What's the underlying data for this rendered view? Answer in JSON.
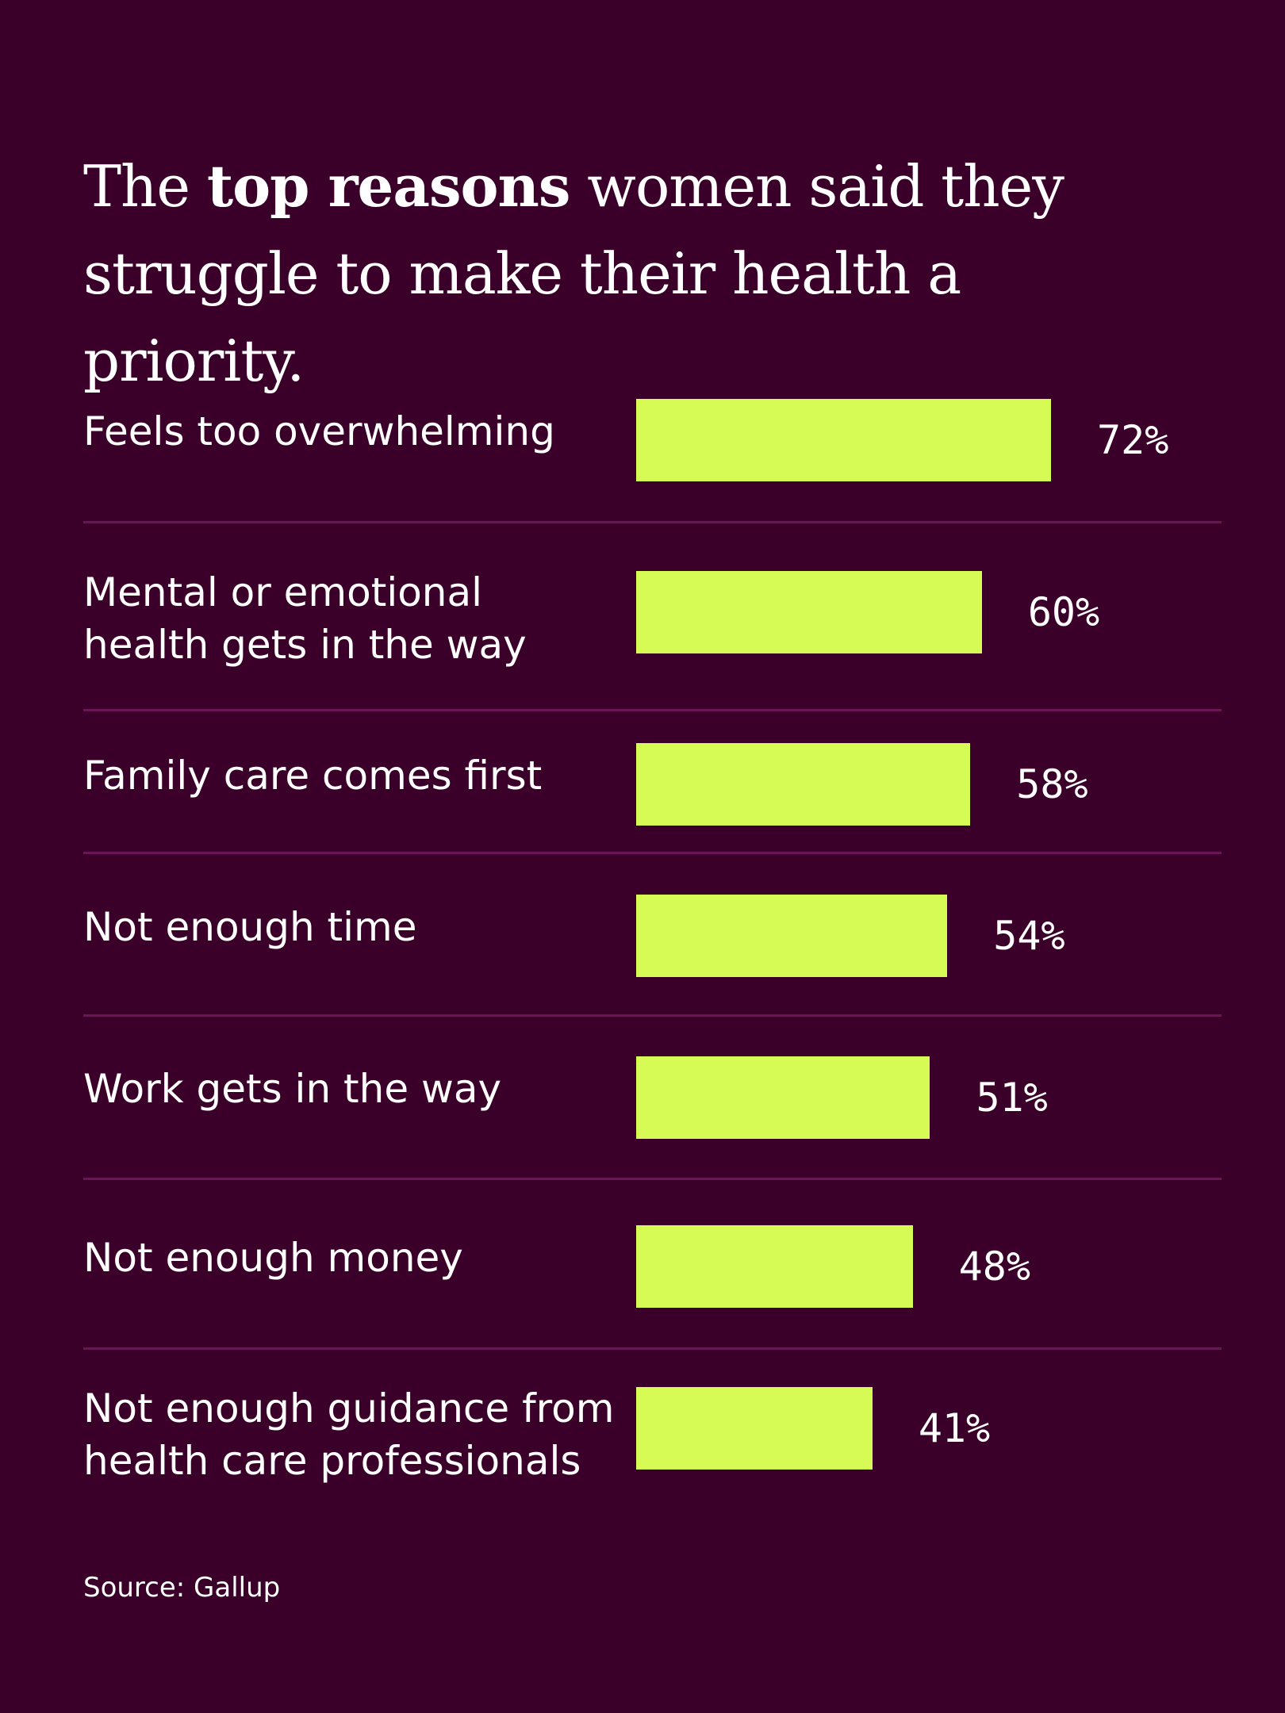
{
  "chart_data": {
    "type": "bar",
    "orientation": "horizontal",
    "title_parts": {
      "before": "The ",
      "bold": "top reasons",
      "after": " women said they struggle to make their health a priority."
    },
    "categories": [
      "Feels too overwhelming",
      "Mental or emotional health gets in the way",
      "Family care comes first",
      "Not enough time",
      "Work gets in the way",
      "Not enough money",
      "Not enough guidance from health care professionals"
    ],
    "values": [
      72,
      60,
      58,
      54,
      51,
      48,
      41
    ],
    "value_labels": [
      "72%",
      "60%",
      "58%",
      "54%",
      "51%",
      "48%",
      "41%"
    ],
    "xlim": [
      0,
      100
    ],
    "grid": false,
    "legend": "none",
    "source": "Source: Gallup",
    "colors": {
      "background": "#3b0029",
      "bar": "#d6fb55",
      "divider": "#6b1457",
      "text": "#ffffff"
    }
  }
}
